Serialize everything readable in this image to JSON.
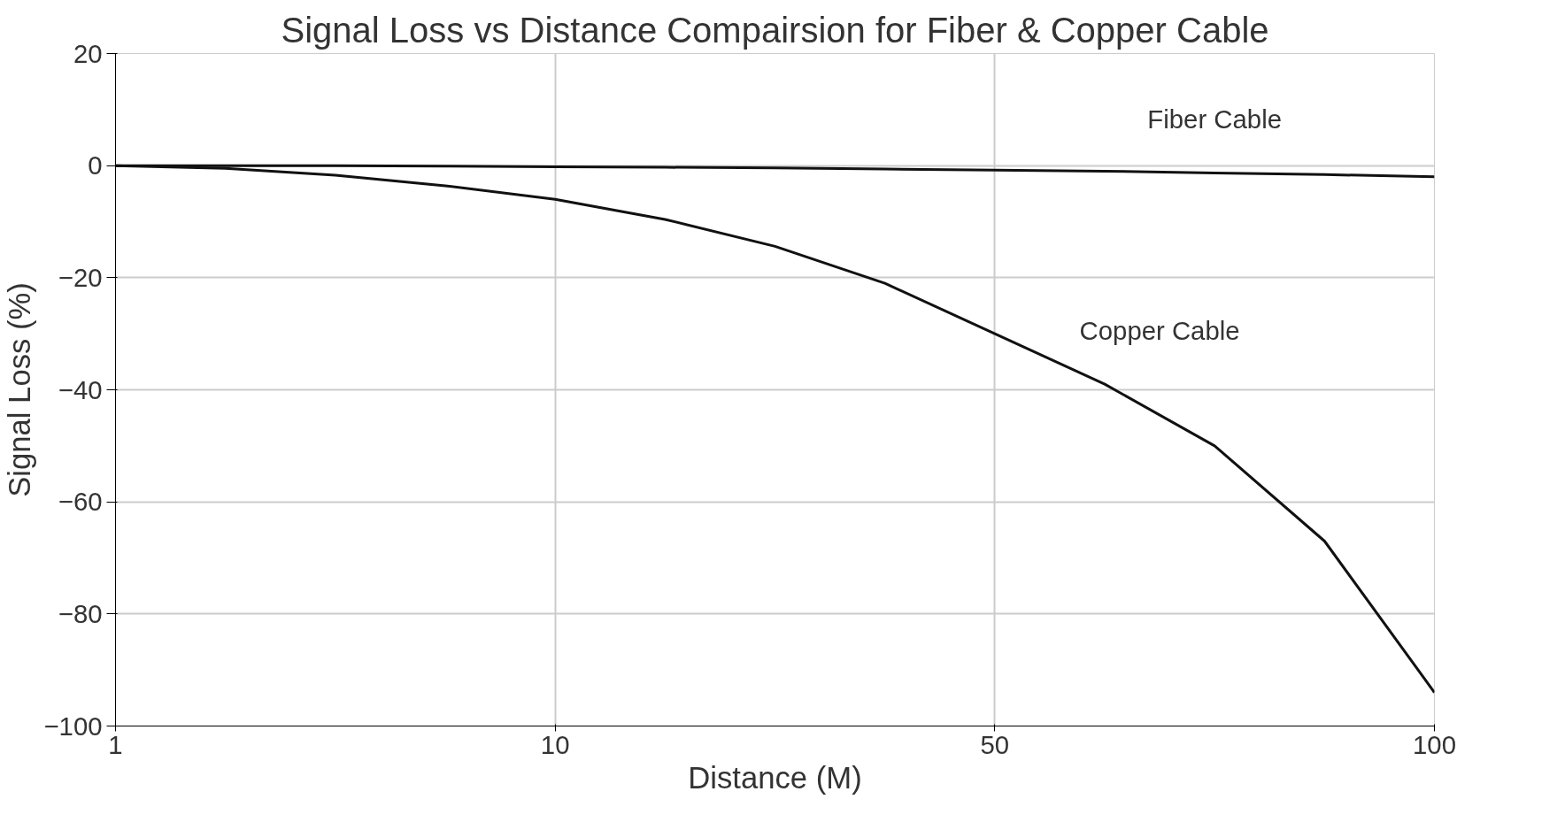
{
  "chart_data": {
    "type": "line",
    "title": "Signal Loss vs Distance Compairsion for Fiber & Copper Cable",
    "xlabel": "Distance (M)",
    "ylabel": "Signal Loss (%)",
    "categories": [
      "1",
      null,
      null,
      null,
      "10",
      null,
      null,
      null,
      "50",
      null,
      null,
      null,
      "100"
    ],
    "series": [
      {
        "name": "Fiber Cable",
        "color": "#111111",
        "values": [
          0,
          0,
          0,
          -0.1,
          -0.2,
          -0.3,
          -0.4,
          -0.6,
          -0.8,
          -1,
          -1.3,
          -1.6,
          -2
        ]
      },
      {
        "name": "Copper Cable",
        "color": "#111111",
        "values": [
          0,
          -0.5,
          -1.7,
          -3.6,
          -6,
          -9.6,
          -14.4,
          -21,
          -30,
          -39,
          -50,
          -67,
          -94
        ]
      }
    ],
    "ylim": [
      -100,
      20
    ],
    "yticks": [
      -100,
      -80,
      -60,
      -40,
      -20,
      0,
      20
    ],
    "grid": true,
    "marker": "none",
    "line_style": "solid"
  }
}
